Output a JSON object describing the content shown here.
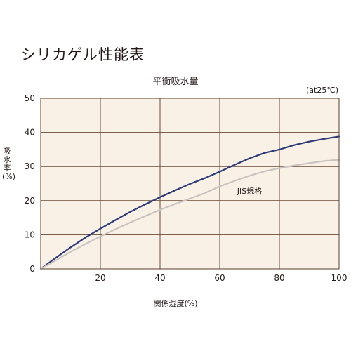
{
  "page": {
    "title": "シリカゲル性能表"
  },
  "chart_data": {
    "type": "line",
    "title": "平衡吸水量",
    "condition_note": "(at25℃)",
    "xlabel": "関係湿度(%)",
    "ylabel": "吸水率(%)",
    "xlim": [
      0,
      100
    ],
    "ylim": [
      0,
      50
    ],
    "x_ticks": [
      20,
      40,
      60,
      80,
      100
    ],
    "y_ticks": [
      0,
      10,
      20,
      30,
      40,
      50
    ],
    "grid": true,
    "background_color": "#faf1e6",
    "series": [
      {
        "color": "#2b3a7a",
        "x": [
          0,
          5,
          10,
          15,
          20,
          25,
          30,
          35,
          40,
          45,
          50,
          55,
          60,
          65,
          70,
          75,
          80,
          85,
          90,
          95,
          100
        ],
        "y": [
          0,
          3.2,
          6.3,
          9.2,
          11.8,
          14.3,
          16.7,
          18.9,
          21.0,
          23.0,
          24.9,
          26.6,
          28.5,
          30.5,
          32.4,
          34.0,
          35.0,
          36.3,
          37.3,
          38.1,
          38.8
        ]
      },
      {
        "name": "JIS規格",
        "color": "#c9c4c1",
        "x": [
          0,
          5,
          10,
          15,
          20,
          25,
          30,
          35,
          40,
          45,
          50,
          55,
          60,
          65,
          70,
          75,
          80,
          85,
          90,
          95,
          100
        ],
        "y": [
          0,
          2.5,
          5.0,
          7.3,
          9.5,
          11.6,
          13.6,
          15.5,
          17.3,
          19.0,
          20.6,
          22.2,
          24.2,
          25.8,
          27.3,
          28.6,
          29.5,
          30.3,
          31.0,
          31.6,
          32.0
        ],
        "label_at": [
          70,
          22
        ]
      }
    ]
  }
}
